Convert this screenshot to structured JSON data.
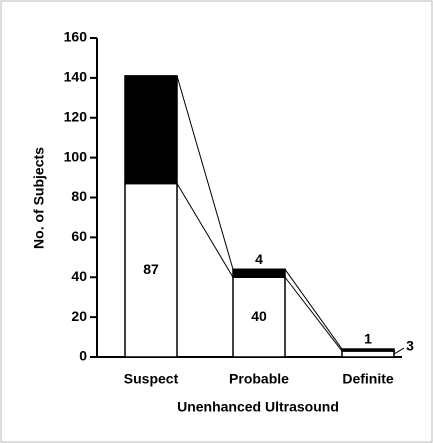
{
  "chart_data": {
    "type": "stacked_bar",
    "categories": [
      "Suspect",
      "Probable",
      "Definite"
    ],
    "series": [
      {
        "color": "#ffffff",
        "values": [
          87,
          40,
          3
        ]
      },
      {
        "color": "#000000",
        "values": [
          54,
          4,
          1
        ]
      }
    ],
    "ylabel": "No. of Subjects",
    "xlabel": "Unenhanced Ultrasound",
    "ylim": [
      0,
      160
    ],
    "yticks": [
      0,
      20,
      40,
      60,
      80,
      100,
      120,
      140,
      160
    ]
  }
}
